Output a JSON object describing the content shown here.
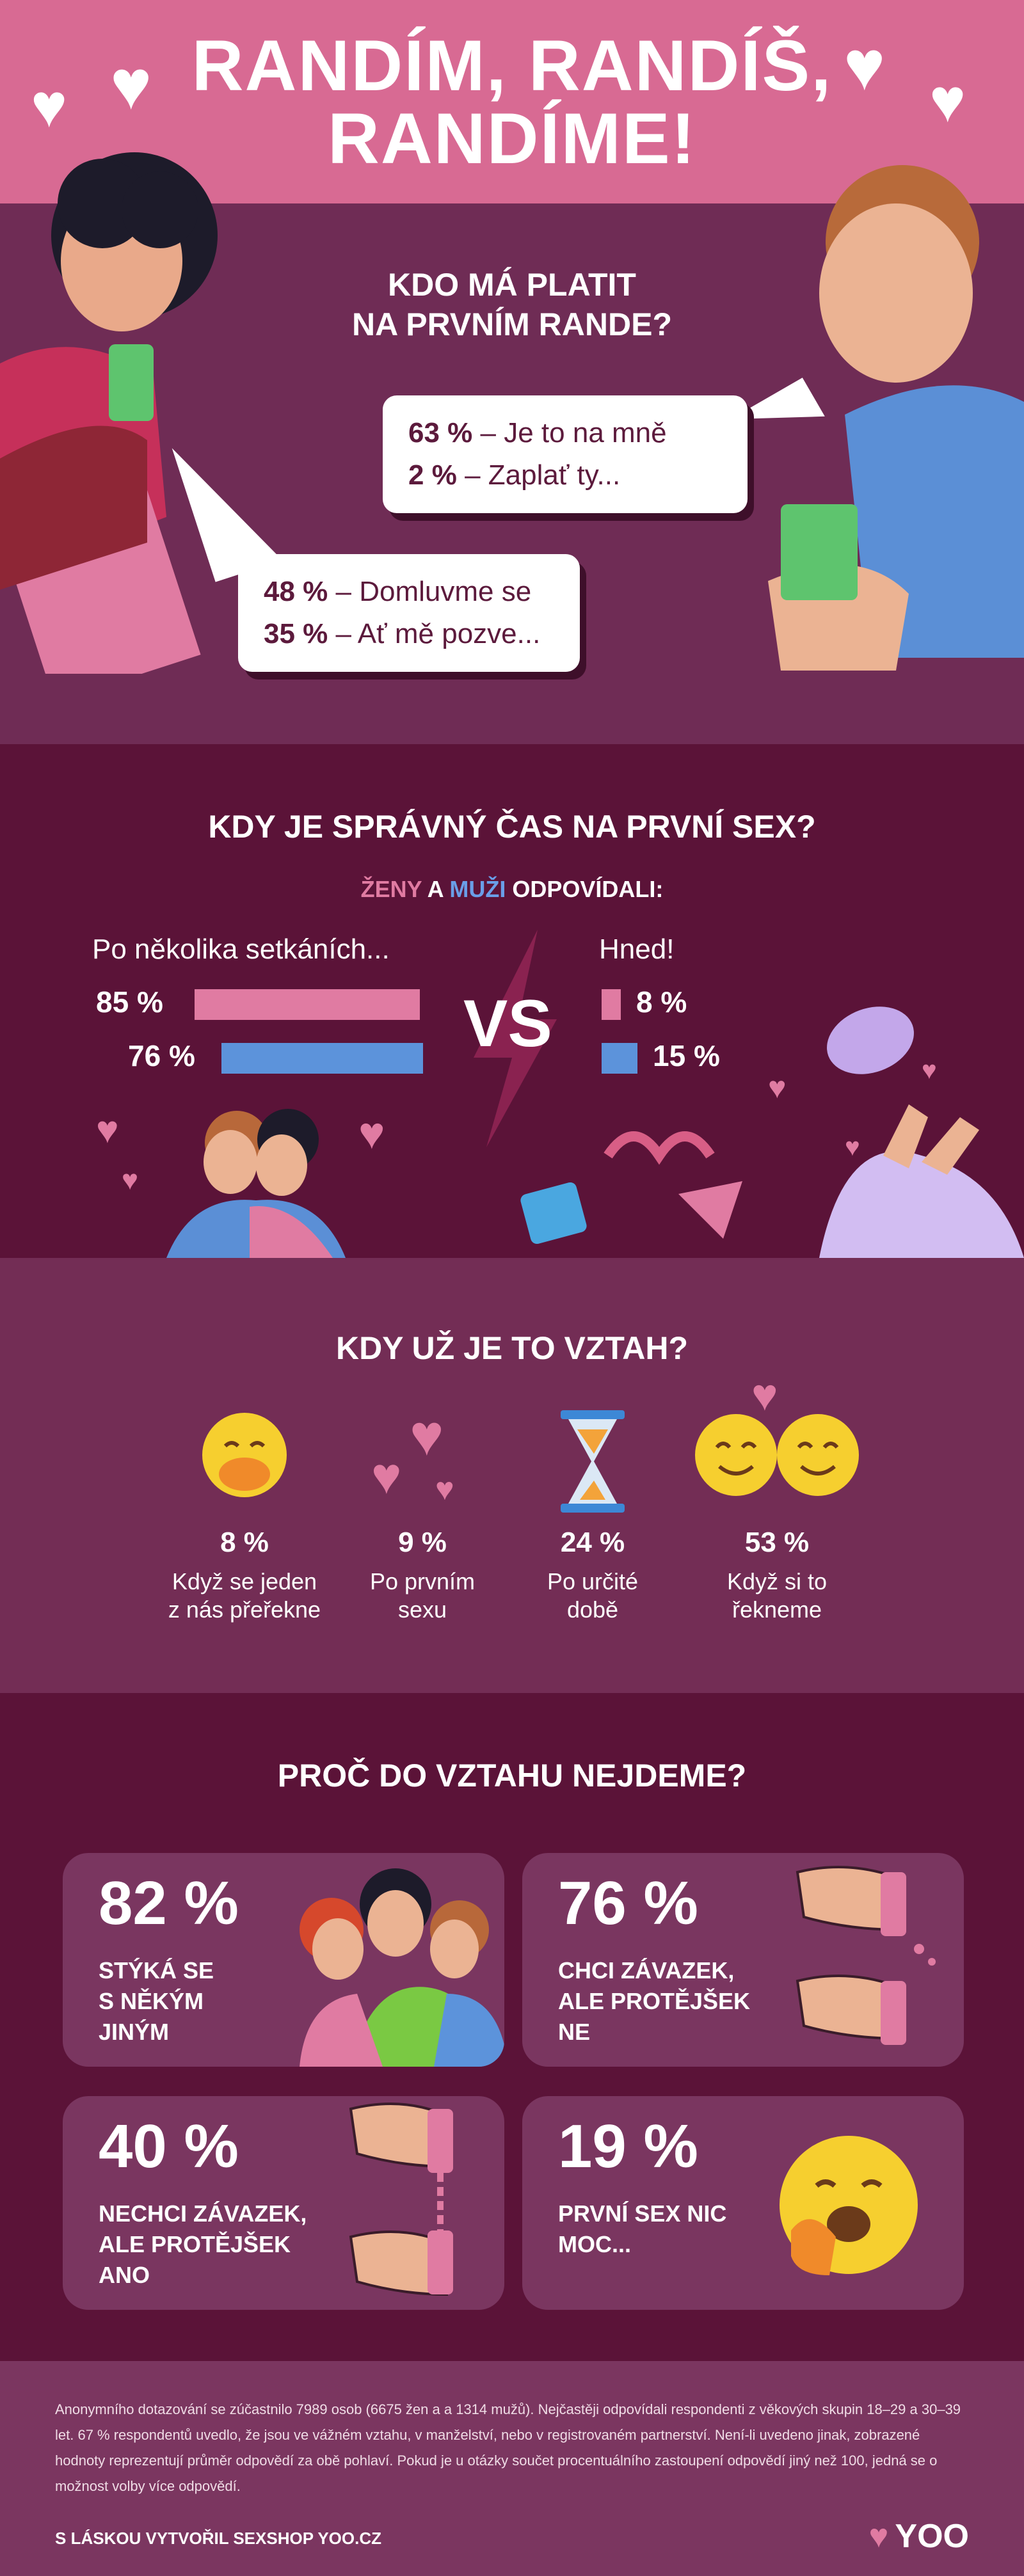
{
  "header": {
    "title_line1": "RANDÍM, RANDÍŠ,",
    "title_line2": "RANDÍME!"
  },
  "section_pay": {
    "question_line1": "KDO MÁ PLATIT",
    "question_line2": "NA PRVNÍM RANDE?",
    "men_bubble": [
      {
        "value": "63 %",
        "text": "– Je to na mně"
      },
      {
        "value": "2 %",
        "text": "– Zaplať ty..."
      }
    ],
    "women_bubble": [
      {
        "value": "48 %",
        "text": "– Domluvme se"
      },
      {
        "value": "35 %",
        "text": "– Ať mě pozve..."
      }
    ]
  },
  "section_sex": {
    "question": "KDY JE SPRÁVNÝ ČAS NA PRVNÍ SEX?",
    "subtitle_women": "ŽENY",
    "subtitle_and": "A",
    "subtitle_men": "MUŽI",
    "subtitle_rest": "ODPOVÍDALI:",
    "left_label": "Po několika setkáních...",
    "left_women": "85 %",
    "left_men": "76 %",
    "vs": "VS",
    "right_label": "Hned!",
    "right_women": "8 %",
    "right_men": "15 %",
    "bars": {
      "left_women": 85,
      "left_men": 76,
      "right_women": 8,
      "right_men": 15
    },
    "colors": {
      "women": "#e07ba2",
      "men": "#5c93db"
    }
  },
  "section_relationship": {
    "question": "KDY UŽ JE TO VZTAH?",
    "items": [
      {
        "value": "8 %",
        "line1": "Když se jeden",
        "line2": "z nás přeřekne"
      },
      {
        "value": "9 %",
        "line1": "Po prvním",
        "line2": "sexu"
      },
      {
        "value": "24 %",
        "line1": "Po určité",
        "line2": "době"
      },
      {
        "value": "53 %",
        "line1": "Když si to",
        "line2": "řekneme"
      }
    ]
  },
  "section_why": {
    "question": "PROČ DO VZTAHU NEJDEME?",
    "cards": [
      {
        "value": "82 %",
        "line1": "STÝKÁ SE",
        "line2": "S NĚKÝM",
        "line3": "JINÝM"
      },
      {
        "value": "76 %",
        "line1": "CHCI ZÁVAZEK,",
        "line2": "ALE PROTĚJŠEK",
        "line3": "NE"
      },
      {
        "value": "40 %",
        "line1": "NECHCI ZÁVAZEK,",
        "line2": "ALE PROTĚJŠEK",
        "line3": "ANO"
      },
      {
        "value": "19 %",
        "line1": "PRVNÍ SEX NIC",
        "line2": "MOC...",
        "line3": ""
      }
    ]
  },
  "footer": {
    "note": "Anonymního dotazování se zúčastnilo 7989 osob (6675 žen a a 1314 mužů). Nejčastěji odpovídali respondenti z věkových skupin 18–29 a 30–39 let. 67 % respondentů uvedlo, že jsou ve vážném vztahu, v manželství, nebo v registrovaném partnerství. Není-li uvedeno jinak, zobrazené hodnoty reprezentují průměr odpovědí za obě pohlaví. Pokud je u otázky součet procentuálního zastoupení odpovědí jiný než 100, jedná se o možnost volby více odpovědí.",
    "credit": "S LÁSKOU VYTVOŘIL SEXSHOP YOO.CZ",
    "logo": "YOO"
  }
}
